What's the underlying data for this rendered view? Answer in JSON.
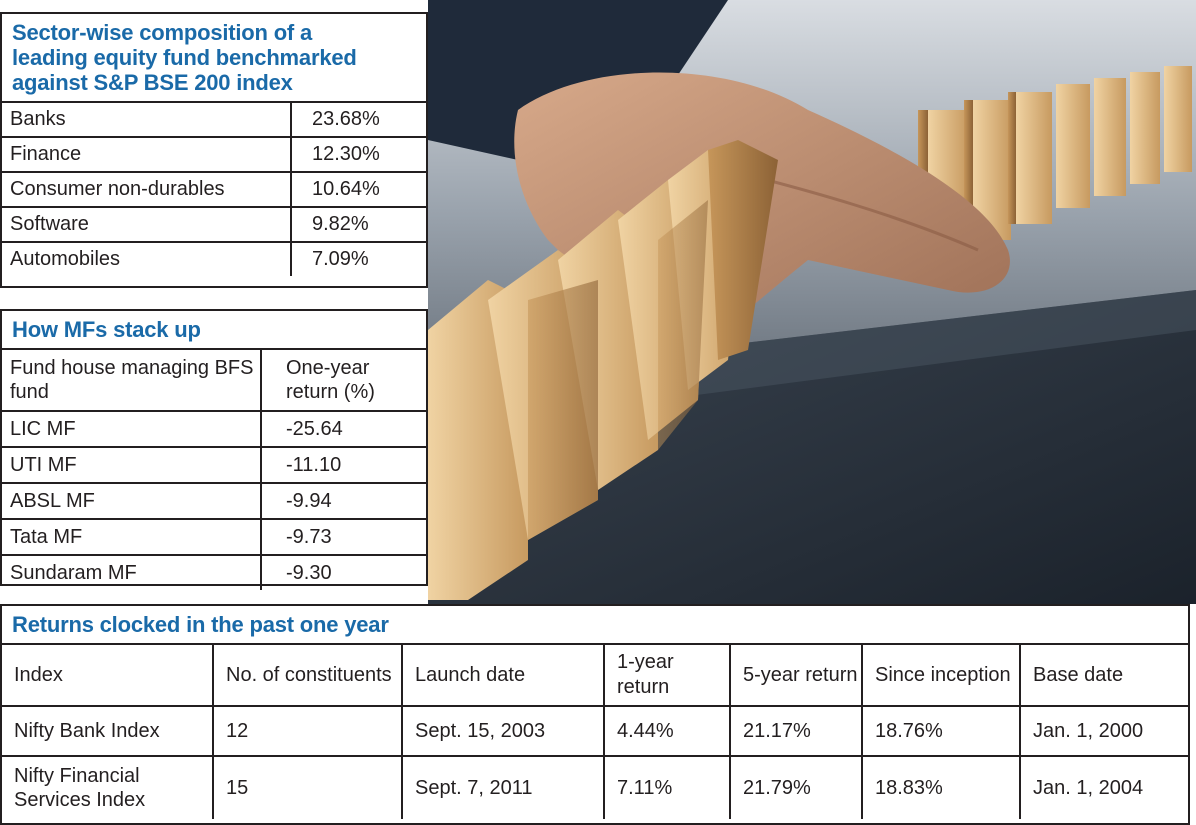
{
  "sector_table": {
    "title": "Sector-wise composition of a leading equity fund benchmarked against S&P BSE 200 index",
    "title_lines": [
      "Sector-wise composition of a",
      "leading equity fund benchmarked",
      "against S&P BSE 200 index"
    ],
    "rows": [
      {
        "sector": "Banks",
        "share": "23.68%"
      },
      {
        "sector": "Finance",
        "share": "12.30%"
      },
      {
        "sector": "Consumer non-durables",
        "share": "10.64%"
      },
      {
        "sector": "Software",
        "share": "9.82%"
      },
      {
        "sector": "Automobiles",
        "share": "7.09%"
      }
    ]
  },
  "mf_table": {
    "title": "How MFs stack up",
    "headers": [
      "Fund house managing BFS fund",
      "One-year return (%)"
    ],
    "rows": [
      {
        "fund": "LIC MF",
        "return": "-25.64"
      },
      {
        "fund": "UTI MF",
        "return": "-11.10"
      },
      {
        "fund": "ABSL MF",
        "return": "-9.94"
      },
      {
        "fund": "Tata MF",
        "return": "-9.73"
      },
      {
        "fund": "Sundaram MF",
        "return": "-9.30"
      }
    ]
  },
  "returns_table": {
    "title": "Returns clocked in the past one year",
    "headers": [
      "Index",
      "No. of constituents",
      "Launch date",
      "1-year return",
      "5-year return",
      "Since inception",
      "Base date"
    ],
    "rows": [
      [
        "Nifty Bank Index",
        "12",
        "Sept. 15, 2003",
        "4.44%",
        "21.17%",
        "18.76%",
        "Jan. 1, 2000"
      ],
      [
        "Nifty Financial Services Index",
        "15",
        "Sept. 7, 2011",
        "7.11%",
        "21.79%",
        "18.83%",
        "Jan. 1, 2004"
      ]
    ]
  },
  "photo": {
    "description_icon": "domino-hand-photo",
    "colors": {
      "wood": "#d9b37c",
      "table": "#2a3340",
      "skin": "#b98a6e",
      "sleeve": "#1f2a3a"
    }
  }
}
